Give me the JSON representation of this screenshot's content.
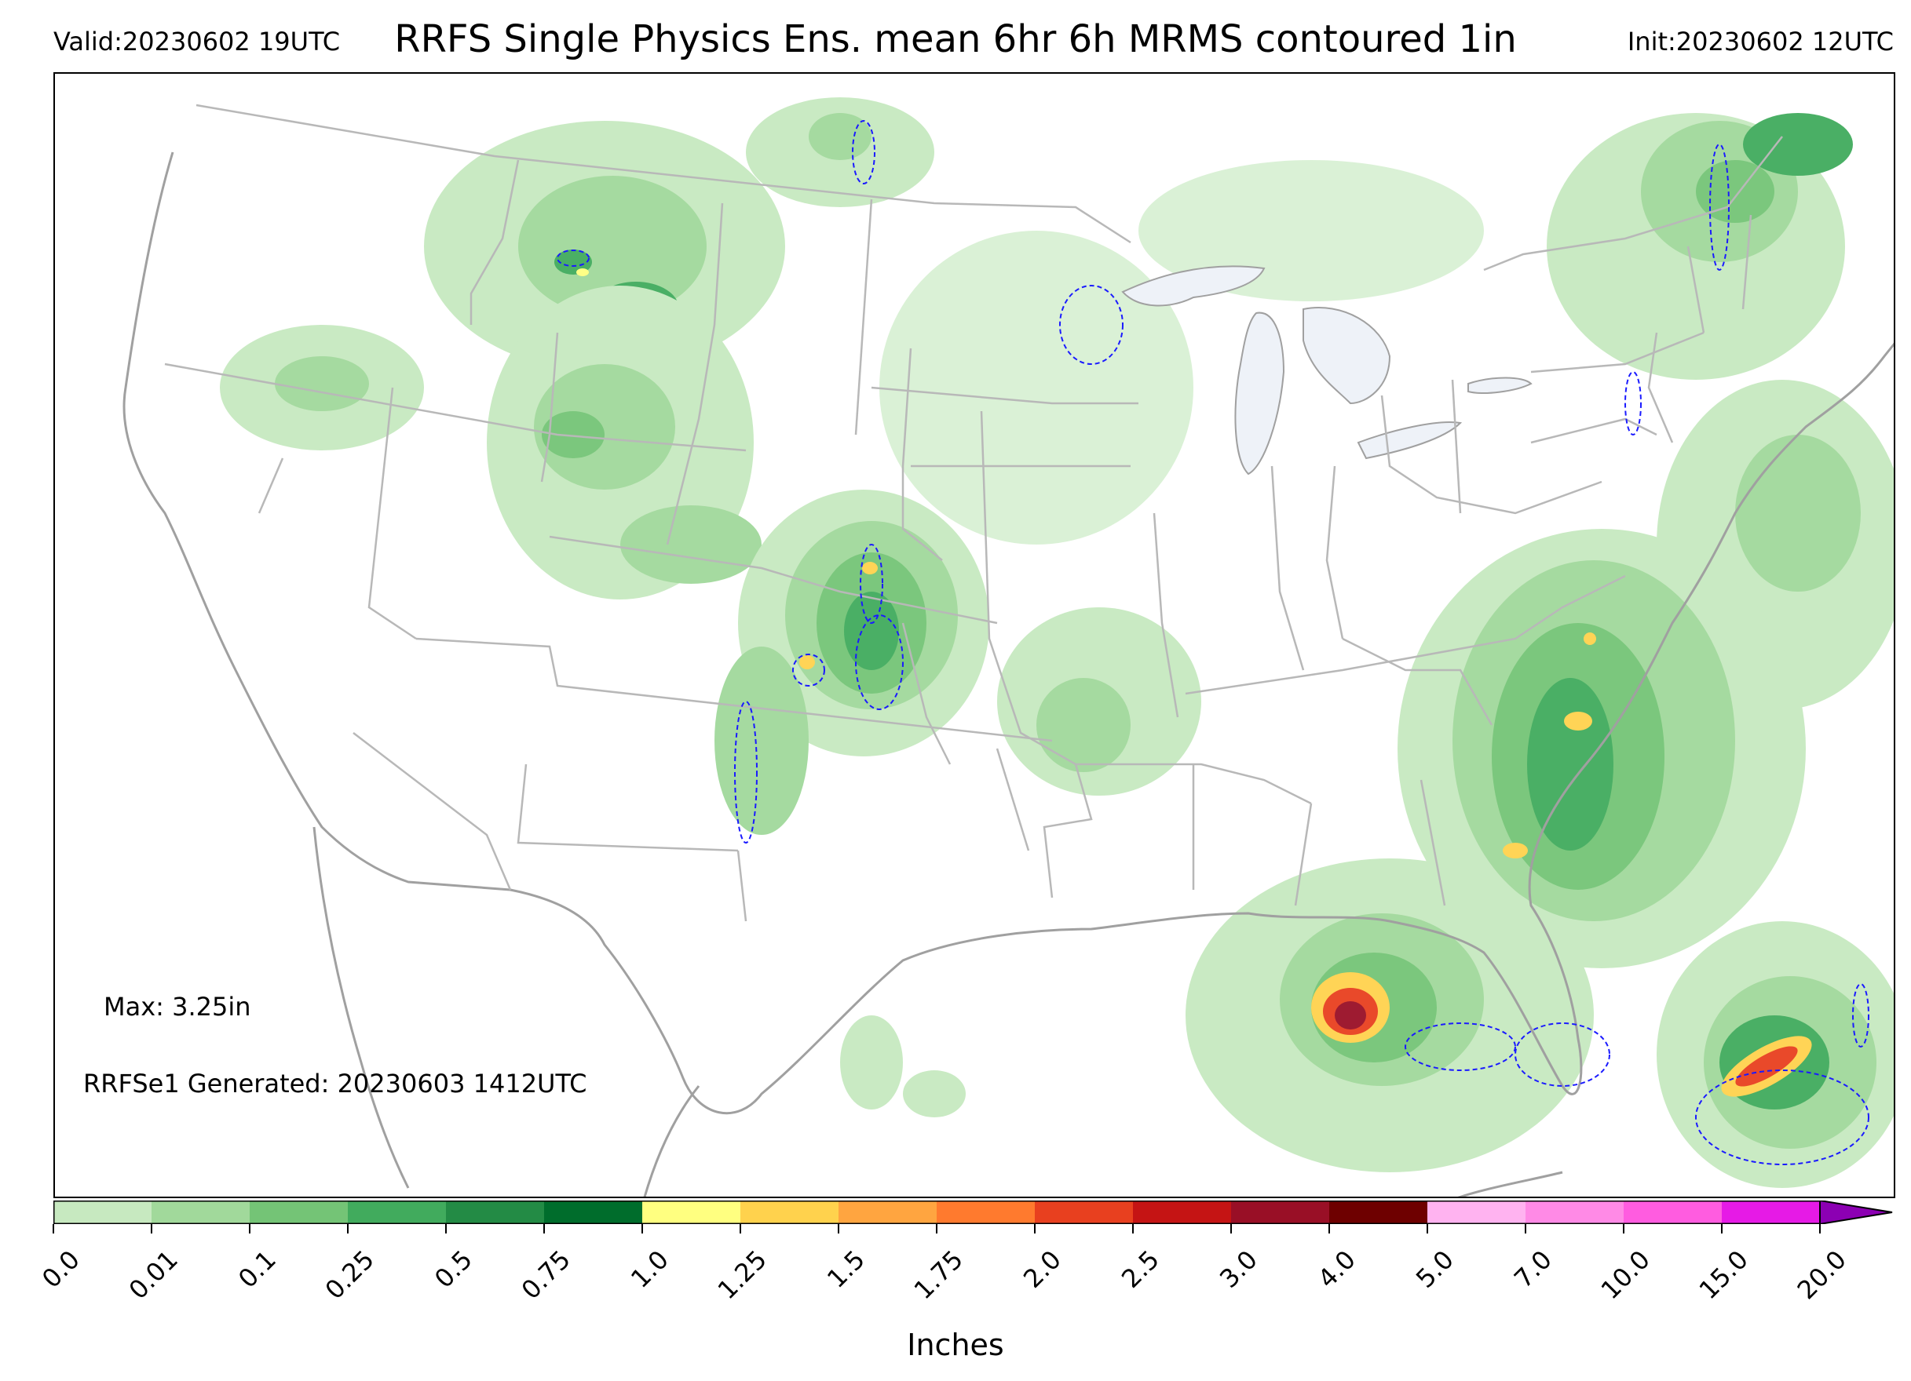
{
  "header": {
    "valid": "Valid:20230602 19UTC",
    "title": "RRFS Single Physics Ens. mean 6hr 6h MRMS contoured 1in",
    "init": "Init:20230602 12UTC"
  },
  "annotations": {
    "max": "Max: 3.25in",
    "generated": "RRFSe1 Generated: 20230603 1412UTC"
  },
  "colorbar": {
    "label": "Inches",
    "ticks": [
      "0.0",
      "0.01",
      "0.1",
      "0.25",
      "0.5",
      "0.75",
      "1.0",
      "1.25",
      "1.5",
      "1.75",
      "2.0",
      "2.5",
      "3.0",
      "4.0",
      "5.0",
      "7.0",
      "10.0",
      "15.0",
      "20.0"
    ],
    "colors": [
      "#ffffff",
      "#c7e9c0",
      "#a1d99b",
      "#74c476",
      "#41ab5d",
      "#238b45",
      "#006d2c",
      "#ffff80",
      "#ffd24d",
      "#ffa540",
      "#ff7a2e",
      "#e8401f",
      "#c51414",
      "#990f26",
      "#6e0000",
      "#ffb3f0",
      "#ff8ae6",
      "#ff5ce0",
      "#e61ae6",
      "#b300c8",
      "#8c00b3"
    ],
    "extend": "max"
  },
  "map": {
    "land_outline": "#a0a0a0",
    "state_lines": "#b0b0b0",
    "lakes": "#eef2f8",
    "contour_color": "#1a1aff",
    "precip_colors": [
      "#c7e9c0",
      "#a1d99b",
      "#74c476",
      "#41ab5d",
      "#238b45",
      "#006d2c",
      "#ffff80",
      "#ffd24d",
      "#ffa540",
      "#e8401f",
      "#990f26"
    ]
  }
}
